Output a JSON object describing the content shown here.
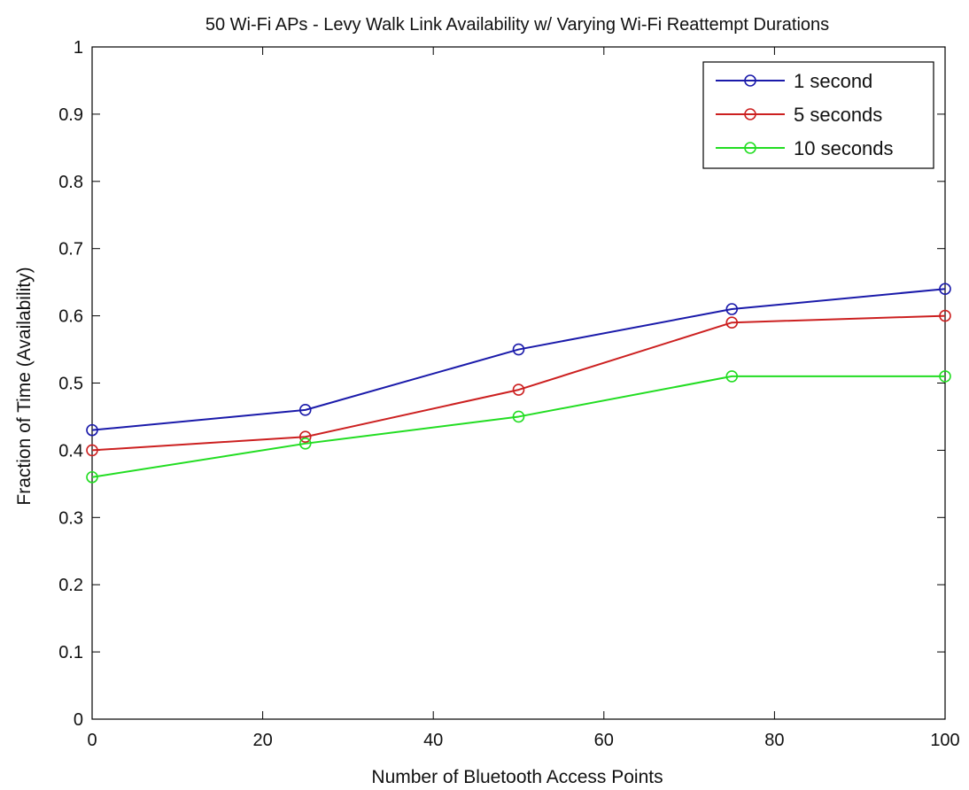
{
  "chart_data": {
    "type": "line",
    "title": "50 Wi-Fi APs - Levy Walk Link Availability w/ Varying Wi-Fi Reattempt Durations",
    "xlabel": "Number of Bluetooth Access Points",
    "ylabel": "Fraction of Time (Availability)",
    "x": [
      0,
      25,
      50,
      75,
      100
    ],
    "xlim": [
      0,
      100
    ],
    "ylim": [
      0,
      1
    ],
    "xticks": [
      0,
      20,
      40,
      60,
      80,
      100
    ],
    "yticks": [
      0,
      0.1,
      0.2,
      0.3,
      0.4,
      0.5,
      0.6,
      0.7,
      0.8,
      0.9,
      1
    ],
    "grid": false,
    "legend_position": "top-right",
    "marker": "circle",
    "series": [
      {
        "name": "1 second",
        "color": "#1a1aaa",
        "values": [
          0.43,
          0.46,
          0.55,
          0.61,
          0.64
        ]
      },
      {
        "name": "5 seconds",
        "color": "#cc2020",
        "values": [
          0.4,
          0.42,
          0.49,
          0.59,
          0.6
        ]
      },
      {
        "name": "10 seconds",
        "color": "#22dd22",
        "values": [
          0.36,
          0.41,
          0.45,
          0.51,
          0.51
        ]
      }
    ]
  }
}
